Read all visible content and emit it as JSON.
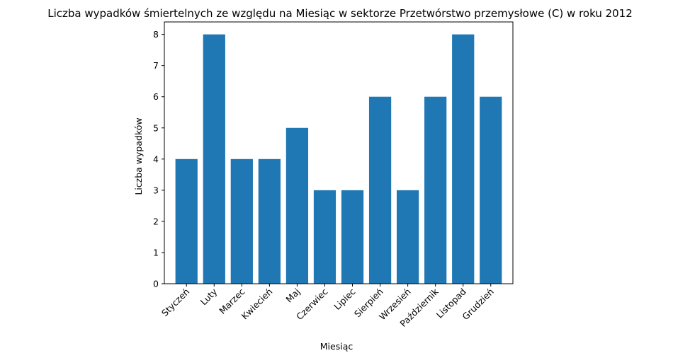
{
  "chart_data": {
    "type": "bar",
    "title": "Liczba wypadków śmiertelnych ze względu na Miesiąc w sektorze Przetwórstwo przemysłowe (C)   w roku 2012",
    "xlabel": "Miesiąc",
    "ylabel": "Liczba wypadków",
    "categories": [
      "Styczeń",
      "Luty",
      "Marzec",
      "Kwiecień",
      "Maj",
      "Czerwiec",
      "Lipiec",
      "Sierpień",
      "Wrzesień",
      "Październik",
      "Listopad",
      "Grudzień"
    ],
    "values": [
      4,
      8,
      4,
      4,
      5,
      3,
      3,
      6,
      3,
      6,
      8,
      6
    ],
    "ylim": [
      0,
      8.4
    ],
    "yticks": [
      0,
      1,
      2,
      3,
      4,
      5,
      6,
      7,
      8
    ],
    "bar_color": "#1f77b4",
    "grid": false,
    "legend": "none"
  }
}
